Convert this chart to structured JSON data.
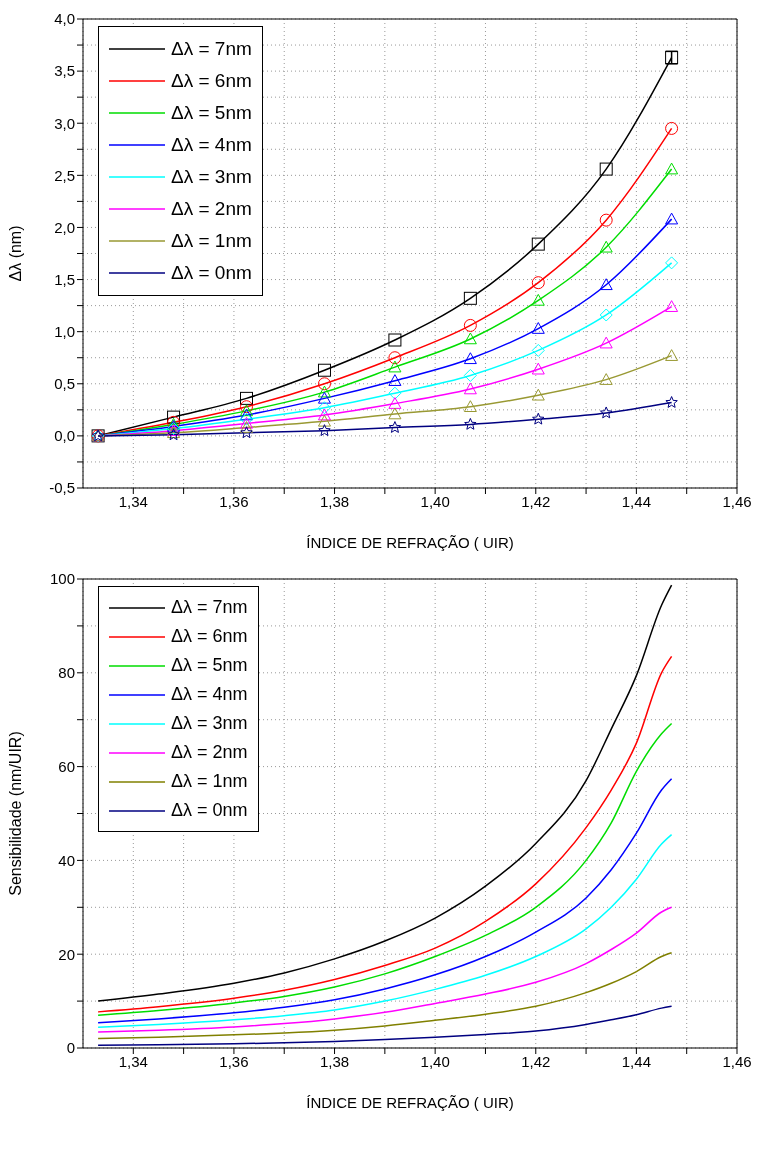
{
  "chart_data": [
    {
      "type": "line",
      "xlabel": "ÍNDICE DE REFRAÇÃO  ( UIR)",
      "ylabel": "Δλ (nm)",
      "x": [
        1.333,
        1.348,
        1.3625,
        1.378,
        1.392,
        1.407,
        1.4205,
        1.434,
        1.447
      ],
      "xlim": [
        1.33,
        1.46
      ],
      "xticks": [
        {
          "value": 1.34,
          "label": "1,34"
        },
        {
          "value": 1.35,
          "label": null
        },
        {
          "value": 1.36,
          "label": "1,36"
        },
        {
          "value": 1.37,
          "label": null
        },
        {
          "value": 1.38,
          "label": "1,38"
        },
        {
          "value": 1.39,
          "label": null
        },
        {
          "value": 1.4,
          "label": "1,40"
        },
        {
          "value": 1.41,
          "label": null
        },
        {
          "value": 1.42,
          "label": "1,42"
        },
        {
          "value": 1.43,
          "label": null
        },
        {
          "value": 1.44,
          "label": "1,44"
        },
        {
          "value": 1.45,
          "label": null
        },
        {
          "value": 1.46,
          "label": "1,46"
        }
      ],
      "ylim": [
        -0.5,
        4.0
      ],
      "yticks": [
        {
          "value": -0.5,
          "label": "-0,5"
        },
        {
          "value": -0.25,
          "label": null
        },
        {
          "value": 0,
          "label": "0,0"
        },
        {
          "value": 0.25,
          "label": null
        },
        {
          "value": 0.5,
          "label": "0,5"
        },
        {
          "value": 0.75,
          "label": null
        },
        {
          "value": 1,
          "label": "1,0"
        },
        {
          "value": 1.25,
          "label": null
        },
        {
          "value": 1.5,
          "label": "1,5"
        },
        {
          "value": 1.75,
          "label": null
        },
        {
          "value": 2,
          "label": "2,0"
        },
        {
          "value": 2.25,
          "label": null
        },
        {
          "value": 2.5,
          "label": "2,5"
        },
        {
          "value": 2.75,
          "label": null
        },
        {
          "value": 3,
          "label": "3,0"
        },
        {
          "value": 3.25,
          "label": null
        },
        {
          "value": 3.5,
          "label": "3,5"
        },
        {
          "value": 3.75,
          "label": null
        },
        {
          "value": 4,
          "label": "4,0"
        }
      ],
      "grid": true,
      "legend": "top left",
      "series": [
        {
          "name": "Δλ = 7nm",
          "color": "#000000",
          "marker": "square",
          "values": [
            0.0,
            0.18,
            0.36,
            0.63,
            0.92,
            1.32,
            1.84,
            2.56,
            3.63
          ],
          "errors": [
            null,
            null,
            null,
            null,
            null,
            null,
            null,
            null,
            0.06
          ]
        },
        {
          "name": "Δλ = 6nm",
          "color": "#ff0000",
          "marker": "circle",
          "values": [
            0.0,
            0.13,
            0.28,
            0.5,
            0.75,
            1.06,
            1.47,
            2.07,
            2.95
          ]
        },
        {
          "name": "Δλ = 5nm",
          "color": "#00dd00",
          "marker": "triangle",
          "values": [
            0.0,
            0.11,
            0.24,
            0.42,
            0.66,
            0.93,
            1.3,
            1.81,
            2.56
          ]
        },
        {
          "name": "Δλ = 4nm",
          "color": "#0000ff",
          "marker": "triangle",
          "values": [
            0.0,
            0.09,
            0.2,
            0.36,
            0.53,
            0.74,
            1.03,
            1.45,
            2.08
          ]
        },
        {
          "name": "Δλ = 3nm",
          "color": "#00ffff",
          "marker": "diamond",
          "values": [
            0.0,
            0.07,
            0.16,
            0.27,
            0.41,
            0.58,
            0.82,
            1.16,
            1.66
          ]
        },
        {
          "name": "Δλ = 2nm",
          "color": "#ff00ff",
          "marker": "triangle",
          "values": [
            0.0,
            0.05,
            0.12,
            0.2,
            0.31,
            0.45,
            0.64,
            0.89,
            1.24
          ]
        },
        {
          "name": "Δλ = 1nm",
          "color": "#999933",
          "marker": "triangle",
          "values": [
            0.0,
            0.03,
            0.08,
            0.14,
            0.21,
            0.28,
            0.39,
            0.54,
            0.77
          ]
        },
        {
          "name": "Δλ = 0nm",
          "color": "#000080",
          "marker": "star",
          "values": [
            0.0,
            0.01,
            0.03,
            0.05,
            0.08,
            0.11,
            0.16,
            0.22,
            0.32
          ]
        }
      ]
    },
    {
      "type": "line",
      "xlabel": "ÍNDICE DE REFRAÇÃO  ( UIR)",
      "ylabel": "Sensibilidade (nm/UIR)",
      "x": [
        1.333,
        1.345,
        1.36,
        1.37,
        1.38,
        1.39,
        1.4,
        1.41,
        1.42,
        1.43,
        1.435,
        1.44,
        1.445,
        1.447
      ],
      "xlim": [
        1.33,
        1.46
      ],
      "xticks": [
        {
          "value": 1.34,
          "label": "1,34"
        },
        {
          "value": 1.35,
          "label": null
        },
        {
          "value": 1.36,
          "label": "1,36"
        },
        {
          "value": 1.37,
          "label": null
        },
        {
          "value": 1.38,
          "label": "1,38"
        },
        {
          "value": 1.39,
          "label": null
        },
        {
          "value": 1.4,
          "label": "1,40"
        },
        {
          "value": 1.41,
          "label": null
        },
        {
          "value": 1.42,
          "label": "1,42"
        },
        {
          "value": 1.43,
          "label": null
        },
        {
          "value": 1.44,
          "label": "1,44"
        },
        {
          "value": 1.45,
          "label": null
        },
        {
          "value": 1.46,
          "label": "1,46"
        }
      ],
      "ylim": [
        0,
        100
      ],
      "yticks": [
        0,
        {
          "value": 10,
          "label": null
        },
        20,
        {
          "value": 30,
          "label": null
        },
        40,
        {
          "value": 50,
          "label": null
        },
        60,
        {
          "value": 70,
          "label": null
        },
        80,
        {
          "value": 90,
          "label": null
        },
        100
      ],
      "grid": true,
      "legend": "top left",
      "series": [
        {
          "name": "Δλ = 7nm",
          "color": "#000000",
          "values": [
            10,
            11.5,
            13.8,
            16,
            19,
            22.8,
            27.7,
            34.5,
            43.6,
            57,
            68,
            79.4,
            94.4,
            98.7
          ]
        },
        {
          "name": "Δλ = 6nm",
          "color": "#ff0000",
          "values": [
            7.7,
            8.8,
            10.6,
            12.3,
            14.6,
            17.6,
            21.3,
            27,
            35,
            47,
            55,
            65,
            80,
            83.5
          ]
        },
        {
          "name": "Δλ = 5nm",
          "color": "#00dd00",
          "values": [
            7,
            8,
            9.6,
            11,
            13,
            15.8,
            19.5,
            24,
            30,
            40,
            48,
            59,
            67,
            69.2
          ]
        },
        {
          "name": "Δλ = 4nm",
          "color": "#0000ff",
          "values": [
            5.4,
            6.2,
            7.5,
            8.7,
            10.3,
            12.6,
            15.6,
            19.5,
            24.7,
            32,
            38,
            45.8,
            55,
            57.4
          ]
        },
        {
          "name": "Δλ = 3nm",
          "color": "#00ffff",
          "values": [
            4.4,
            5,
            6,
            6.9,
            8.1,
            10,
            12.5,
            15.5,
            19.5,
            25.4,
            30,
            36,
            43.5,
            45.5
          ]
        },
        {
          "name": "Δλ = 2nm",
          "color": "#ff00ff",
          "values": [
            3.4,
            3.8,
            4.5,
            5.2,
            6.2,
            7.6,
            9.5,
            11.5,
            14,
            18,
            21,
            24.5,
            29,
            30
          ]
        },
        {
          "name": "Δλ = 1nm",
          "color": "#808000",
          "values": [
            2,
            2.3,
            2.8,
            3.2,
            3.8,
            4.7,
            5.9,
            7.2,
            8.9,
            11.8,
            13.8,
            16.3,
            19.5,
            20.3
          ]
        },
        {
          "name": "Δλ = 0nm",
          "color": "#000080",
          "values": [
            0.6,
            0.7,
            0.9,
            1.1,
            1.4,
            1.8,
            2.3,
            2.9,
            3.6,
            5,
            6,
            7.1,
            8.5,
            8.9
          ]
        }
      ]
    }
  ]
}
